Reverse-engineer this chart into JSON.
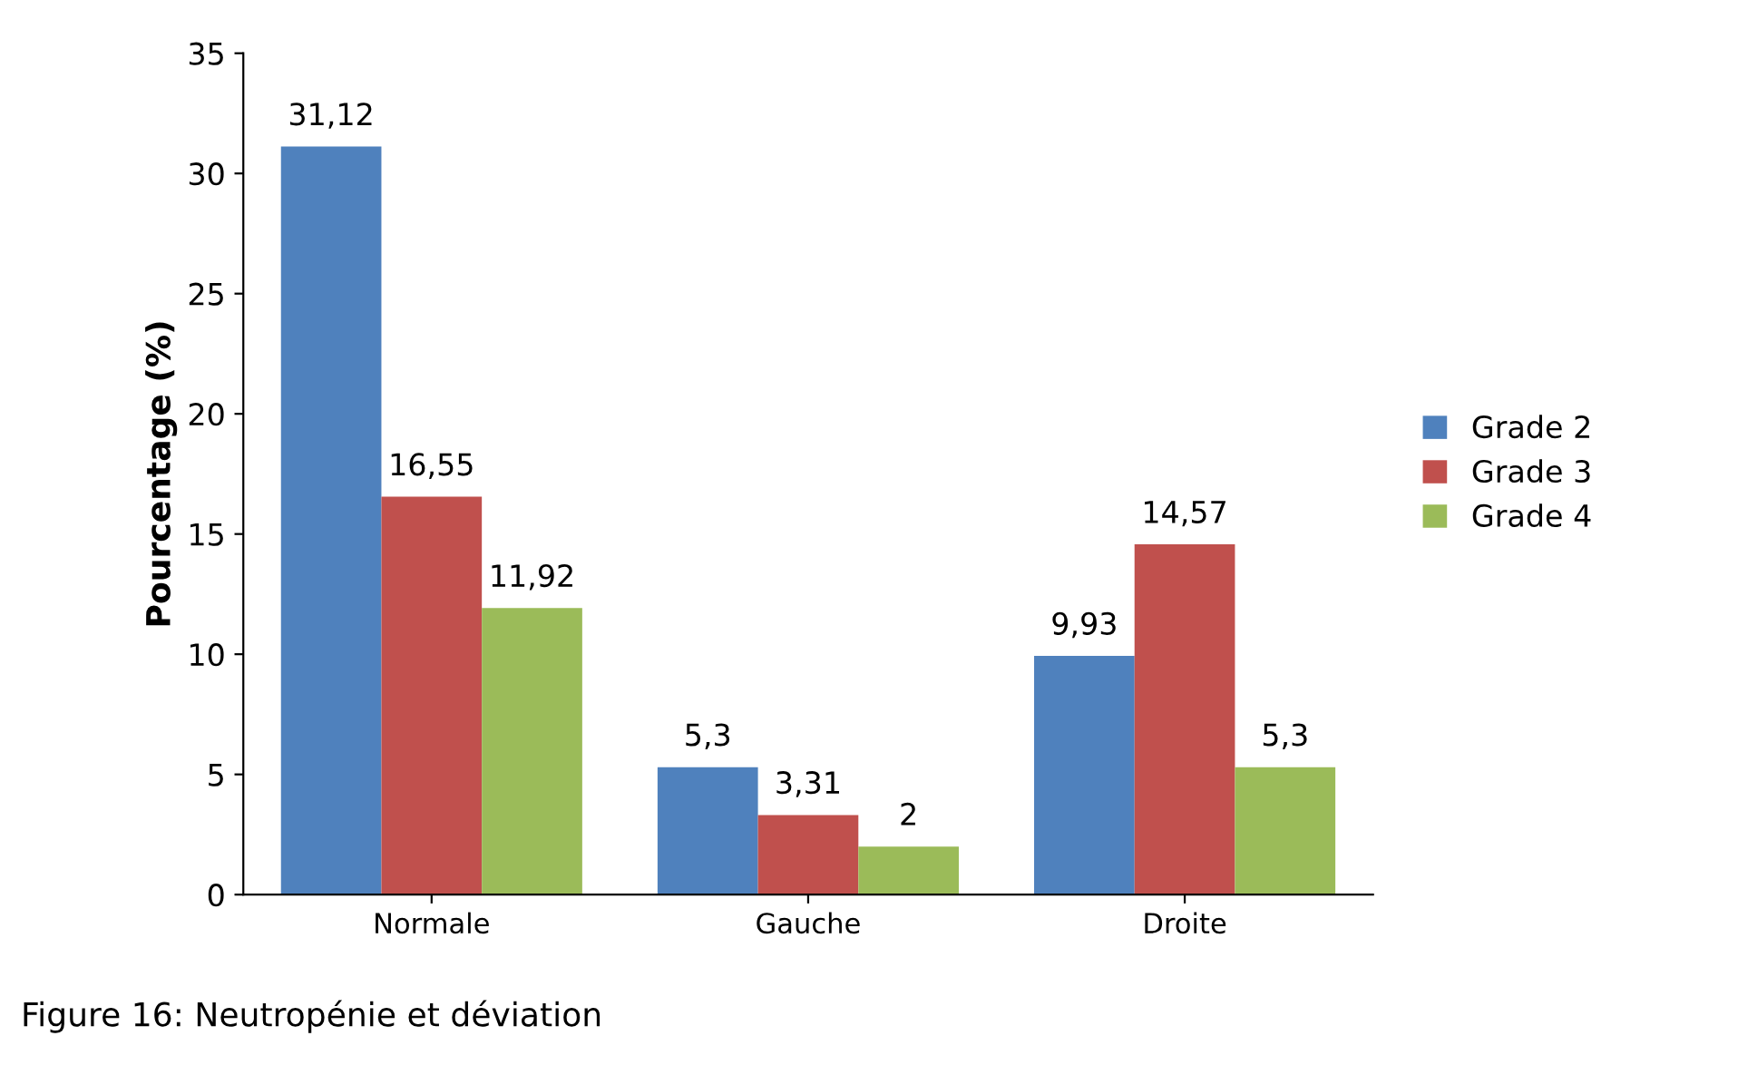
{
  "chart_data": {
    "type": "bar",
    "ylabel": "Pourcentage (%)",
    "categories": [
      "Normale",
      "Gauche",
      "Droite"
    ],
    "series": [
      {
        "name": "Grade 2",
        "color": "#4f81bd",
        "values": [
          31.12,
          5.3,
          9.93
        ],
        "value_labels": [
          "31,12",
          "5,3",
          "9,93"
        ]
      },
      {
        "name": "Grade 3",
        "color": "#c0504d",
        "values": [
          16.55,
          3.31,
          14.57
        ],
        "value_labels": [
          "16,55",
          "3,31",
          "14,57"
        ]
      },
      {
        "name": "Grade 4",
        "color": "#9bbb59",
        "values": [
          11.92,
          2,
          5.3
        ],
        "value_labels": [
          "11,92",
          "2",
          "5,3"
        ]
      }
    ],
    "ylim": [
      0,
      35
    ],
    "yticks": [
      0,
      5,
      10,
      15,
      20,
      25,
      30,
      35
    ],
    "grid": false,
    "legend": "right",
    "annotations": [
      "Figure 16: Neutropénie et déviation"
    ]
  }
}
